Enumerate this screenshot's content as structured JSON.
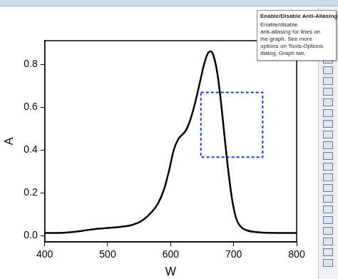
{
  "chart_data": {
    "type": "line",
    "x_label": "W",
    "y_label": "A",
    "x": [
      400,
      420,
      440,
      460,
      480,
      500,
      520,
      540,
      555,
      570,
      580,
      590,
      598,
      605,
      612,
      618,
      624,
      630,
      638,
      646,
      654,
      660,
      664,
      668,
      674,
      680,
      686,
      692,
      698,
      704,
      710,
      720,
      740,
      770,
      800
    ],
    "values": [
      0.012,
      0.012,
      0.015,
      0.022,
      0.03,
      0.035,
      0.04,
      0.05,
      0.07,
      0.11,
      0.15,
      0.22,
      0.31,
      0.4,
      0.45,
      0.47,
      0.49,
      0.53,
      0.61,
      0.71,
      0.81,
      0.855,
      0.86,
      0.84,
      0.76,
      0.62,
      0.45,
      0.29,
      0.16,
      0.08,
      0.045,
      0.025,
      0.015,
      0.012,
      0.012
    ],
    "color": "#000000",
    "marker": "none",
    "line_style": "solid",
    "xlim": [
      400,
      800
    ],
    "xticks": [
      400,
      500,
      600,
      700,
      800
    ],
    "ylim": [
      -0.03,
      0.91
    ],
    "yticks": [
      {
        "value": 0,
        "label": "0.0"
      },
      0.2,
      0.4,
      0.6,
      0.8
    ],
    "grid": false,
    "annotations": [
      {
        "title": "Enable/Disable Anti-Aliasing",
        "text": [
          "Enable/disable",
          "anti-aliasing for lines on",
          "the graph. See more",
          "options on Tools-Options",
          "dialog, Graph tab."
        ]
      }
    ]
  }
}
